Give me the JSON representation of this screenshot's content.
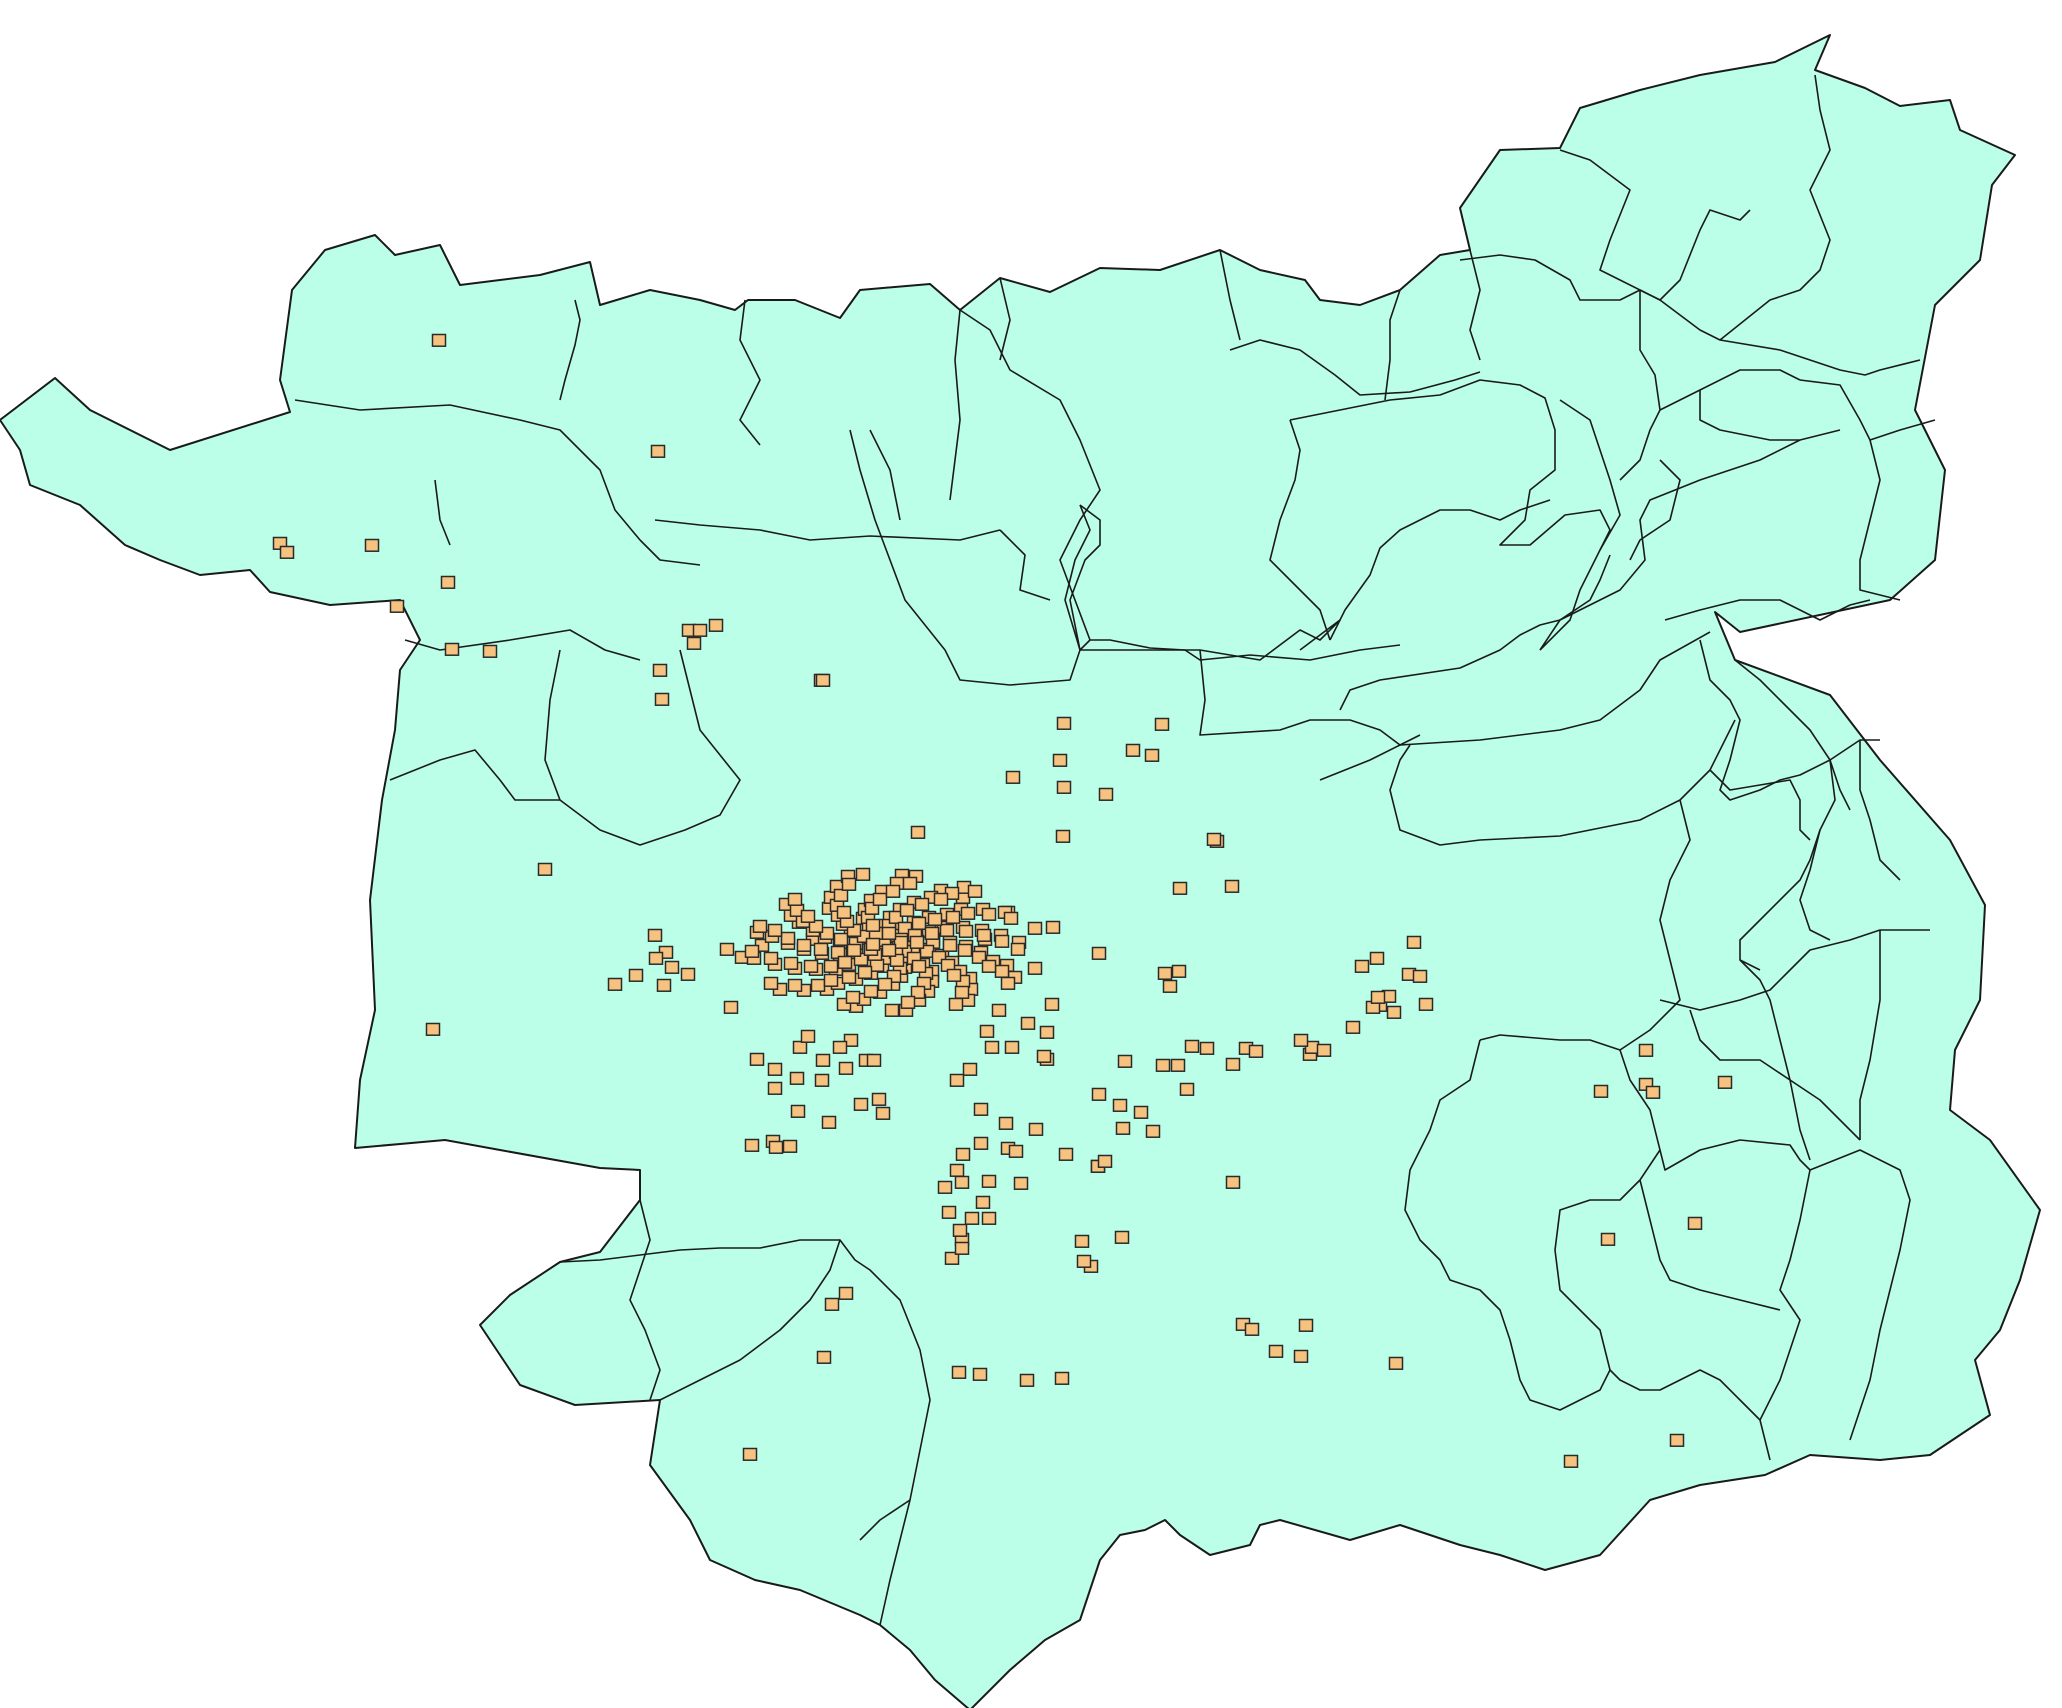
{
  "map": {
    "type": "choropleth-point-map",
    "region_fill": "#bbffe8",
    "boundary_color": "#1a1a1a",
    "marker_fill": "#f6c27f",
    "marker_stroke": "#2a2a2a",
    "marker_shape": "square",
    "legend": "none",
    "labels": "none"
  }
}
